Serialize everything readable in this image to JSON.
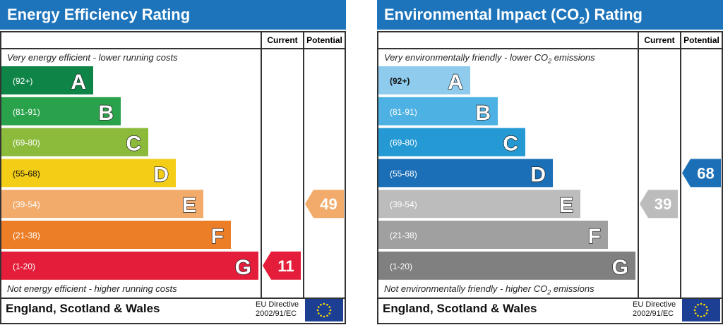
{
  "chart_data": [
    {
      "type": "bar",
      "title": "Energy Efficiency Rating",
      "columns": {
        "current": "Current",
        "potential": "Potential"
      },
      "top_caption": "Very energy efficient - lower running costs",
      "bottom_caption": "Not energy efficient - higher running costs",
      "bands": [
        {
          "letter": "A",
          "range": "(92+)",
          "color": "#0e8447"
        },
        {
          "letter": "B",
          "range": "(81-91)",
          "color": "#2aa24b"
        },
        {
          "letter": "C",
          "range": "(69-80)",
          "color": "#8cbb3c"
        },
        {
          "letter": "D",
          "range": "(55-68)",
          "color": "#f4cd16"
        },
        {
          "letter": "E",
          "range": "(39-54)",
          "color": "#f2ab6a"
        },
        {
          "letter": "F",
          "range": "(21-38)",
          "color": "#ec7e28"
        },
        {
          "letter": "G",
          "range": "(1-20)",
          "color": "#e41e3a"
        }
      ],
      "current": {
        "value": 11,
        "label": "11",
        "band": "G",
        "color": "#e41e3a"
      },
      "potential": {
        "value": 49,
        "label": "49",
        "band": "E",
        "color": "#f2ab6a"
      },
      "footer": "England, Scotland & Wales",
      "directive": [
        "EU Directive",
        "2002/91/EC"
      ]
    },
    {
      "type": "bar",
      "title_main": "Environmental Impact (CO",
      "title_sub": "2",
      "title_end": ") Rating",
      "columns": {
        "current": "Current",
        "potential": "Potential"
      },
      "top_caption": "Very environmentally friendly - lower CO",
      "top_caption_sub": "2",
      "top_caption_end": " emissions",
      "bottom_caption": "Not environmentally friendly - higher CO",
      "bottom_caption_sub": "2",
      "bottom_caption_end": " emissions",
      "bands": [
        {
          "letter": "A",
          "range": "(92+)",
          "color": "#8ecbed"
        },
        {
          "letter": "B",
          "range": "(81-91)",
          "color": "#4db1e3"
        },
        {
          "letter": "C",
          "range": "(69-80)",
          "color": "#2599d4"
        },
        {
          "letter": "D",
          "range": "(55-68)",
          "color": "#1b6fb6"
        },
        {
          "letter": "E",
          "range": "(39-54)",
          "color": "#bcbcbc"
        },
        {
          "letter": "F",
          "range": "(21-38)",
          "color": "#a0a0a0"
        },
        {
          "letter": "G",
          "range": "(1-20)",
          "color": "#808080"
        }
      ],
      "current": {
        "value": 39,
        "label": "39",
        "band": "E",
        "color": "#bcbcbc"
      },
      "potential": {
        "value": 68,
        "label": "68",
        "band": "D",
        "color": "#1b6fb6"
      },
      "footer": "England, Scotland & Wales",
      "directive": [
        "EU Directive",
        "2002/91/EC"
      ]
    }
  ]
}
